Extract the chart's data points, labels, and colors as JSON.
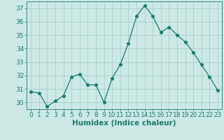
{
  "title": "",
  "xlabel": "Humidex (Indice chaleur)",
  "ylabel": "",
  "x": [
    0,
    1,
    2,
    3,
    4,
    5,
    6,
    7,
    8,
    9,
    10,
    11,
    12,
    13,
    14,
    15,
    16,
    17,
    18,
    19,
    20,
    21,
    22,
    23
  ],
  "y": [
    30.8,
    30.7,
    29.7,
    30.1,
    30.5,
    31.9,
    32.1,
    31.3,
    31.3,
    30.0,
    31.8,
    32.8,
    34.4,
    36.4,
    37.2,
    36.4,
    35.2,
    35.6,
    35.0,
    34.5,
    33.7,
    32.8,
    31.9,
    30.9
  ],
  "line_color": "#1a7a6e",
  "marker": "*",
  "bg_color": "#cce9e5",
  "grid_color": "#aacfcb",
  "ylim": [
    29.5,
    37.5
  ],
  "yticks": [
    30,
    31,
    32,
    33,
    34,
    35,
    36,
    37
  ],
  "xticks": [
    0,
    1,
    2,
    3,
    4,
    5,
    6,
    7,
    8,
    9,
    10,
    11,
    12,
    13,
    14,
    15,
    16,
    17,
    18,
    19,
    20,
    21,
    22,
    23
  ],
  "tick_label_fontsize": 6.5,
  "xlabel_fontsize": 7.5
}
